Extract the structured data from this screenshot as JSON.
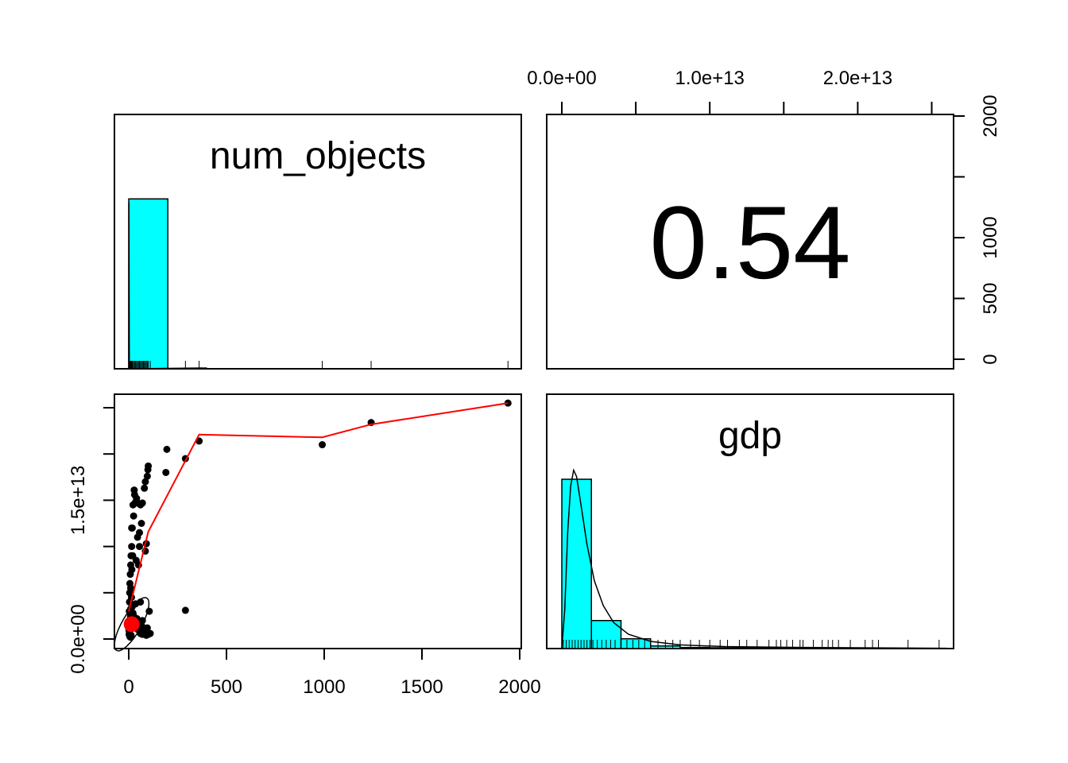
{
  "chart_data": {
    "type": "scatter",
    "layout": "pairs-panel 2x2",
    "variables": [
      "num_objects",
      "gdp"
    ],
    "colors": {
      "histogram_fill": "#00FFFF",
      "smoother": "#FF0000",
      "points": "#000000",
      "mean_point": "#FF0000"
    },
    "axes": {
      "num_objects": {
        "range": [
          0,
          2000
        ],
        "ticks": [
          0,
          500,
          1000,
          1500,
          2000
        ],
        "tick_labels": [
          "0",
          "500",
          "1000",
          "1500",
          "2000"
        ]
      },
      "gdp": {
        "range": [
          0,
          25000000000000.0
        ],
        "top_ticks": [
          0,
          5000000000000.0,
          10000000000000.0,
          15000000000000.0,
          20000000000000.0,
          25000000000000.0
        ],
        "top_tick_labels": [
          "0.0e+00",
          "1.0e+13",
          "2.0e+13"
        ],
        "top_labeled_ticks": [
          0,
          10000000000000.0,
          20000000000000.0
        ],
        "left_ticks": [
          0,
          5000000000000.0,
          10000000000000.0,
          15000000000000.0,
          20000000000000.0,
          25000000000000.0
        ],
        "left_tick_labels": [
          "0.0e+00",
          "1.5e+13"
        ],
        "left_labeled_ticks": [
          0,
          15000000000000.0
        ]
      },
      "right_count": {
        "range": [
          0,
          2000
        ],
        "ticks": [
          0,
          500,
          1000,
          1500,
          2000
        ],
        "tick_labels": [
          "0",
          "500",
          "1000",
          "2000"
        ],
        "labeled_ticks": [
          0,
          500,
          1000,
          2000
        ]
      }
    },
    "panels": [
      {
        "position": "top-left",
        "kind": "histogram",
        "title": "num_objects",
        "bins": [
          {
            "from": 0,
            "to": 200,
            "height": 0.95
          }
        ],
        "rug": [
          0,
          2,
          4,
          6,
          8,
          10,
          12,
          15,
          18,
          20,
          25,
          30,
          35,
          40,
          45,
          50,
          55,
          60,
          65,
          70,
          75,
          80,
          85,
          90,
          95,
          100,
          110,
          290,
          360,
          990,
          1240,
          1940
        ]
      },
      {
        "position": "top-right",
        "kind": "correlation",
        "value": "0.54"
      },
      {
        "position": "bottom-left",
        "kind": "scatter",
        "points": [
          [
            1940,
            25500000000000.0
          ],
          [
            1240,
            23400000000000.0
          ],
          [
            990,
            21000000000000.0
          ],
          [
            360,
            21400000000000.0
          ],
          [
            290,
            19500000000000.0
          ],
          [
            195,
            20500000000000.0
          ],
          [
            190,
            18000000000000.0
          ],
          [
            290,
            3100000000000.0
          ],
          [
            100,
            18700000000000.0
          ],
          [
            98,
            18300000000000.0
          ],
          [
            95,
            17600000000000.0
          ],
          [
            85,
            17000000000000.0
          ],
          [
            80,
            16300000000000.0
          ],
          [
            70,
            14700000000000.0
          ],
          [
            65,
            12500000000000.0
          ],
          [
            60,
            14500000000000.0
          ],
          [
            55,
            11500000000000.0
          ],
          [
            45,
            14700000000000.0
          ],
          [
            40,
            15200000000000.0
          ],
          [
            35,
            14800000000000.0
          ],
          [
            30,
            15600000000000.0
          ],
          [
            28,
            16100000000000.0
          ],
          [
            25,
            13300000000000.0
          ],
          [
            22,
            14500000000000.0
          ],
          [
            18,
            12000000000000.0
          ],
          [
            15,
            10000000000000.0
          ],
          [
            12,
            9000000000000.0
          ],
          [
            10,
            8000000000000.0
          ],
          [
            8,
            7000000000000.0
          ],
          [
            6,
            6000000000000.0
          ],
          [
            5,
            5000000000000.0
          ],
          [
            4,
            4000000000000.0
          ],
          [
            3,
            3000000000000.0
          ],
          [
            2,
            2000000000000.0
          ],
          [
            1,
            1000000000000.0
          ],
          [
            2,
            500000000000.0
          ],
          [
            5,
            300000000000.0
          ],
          [
            8,
            200000000000.0
          ],
          [
            12,
            400000000000.0
          ],
          [
            20,
            1500000000000.0
          ],
          [
            25,
            2500000000000.0
          ],
          [
            30,
            1800000000000.0
          ],
          [
            40,
            2000000000000.0
          ],
          [
            50,
            1200000000000.0
          ],
          [
            60,
            600000000000.0
          ],
          [
            70,
            500000000000.0
          ],
          [
            80,
            700000000000.0
          ],
          [
            90,
            400000000000.0
          ],
          [
            100,
            500000000000.0
          ],
          [
            105,
            3000000000000.0
          ],
          [
            70,
            2000000000000.0
          ],
          [
            60,
            4000000000000.0
          ],
          [
            85,
            9500000000000.0
          ],
          [
            90,
            10300000000000.0
          ],
          [
            45,
            11000000000000.0
          ],
          [
            38,
            8500000000000.0
          ],
          [
            50,
            8000000000000.0
          ],
          [
            55,
            10000000000000.0
          ],
          [
            15,
            12000000000000.0
          ],
          [
            20,
            9000000000000.0
          ],
          [
            10,
            5500000000000.0
          ],
          [
            14,
            4500000000000.0
          ],
          [
            18,
            3500000000000.0
          ],
          [
            22,
            2800000000000.0
          ],
          [
            35,
            3800000000000.0
          ],
          [
            42,
            2200000000000.0
          ],
          [
            48,
            1000000000000.0
          ],
          [
            65,
            1500000000000.0
          ],
          [
            75,
            1000000000000.0
          ],
          [
            95,
            1200000000000.0
          ],
          [
            110,
            600000000000.0
          ],
          [
            3,
            800000000000.0
          ],
          [
            6,
            1300000000000.0
          ],
          [
            9,
            2500000000000.0
          ],
          [
            11,
            3300000000000.0
          ],
          [
            16,
            7500000000000.0
          ]
        ],
        "smoother": [
          [
            0,
            3000000000000.0
          ],
          [
            100,
            11600000000000.0
          ],
          [
            360,
            22100000000000.0
          ],
          [
            990,
            21800000000000.0
          ],
          [
            1240,
            23200000000000.0
          ],
          [
            1940,
            25500000000000.0
          ]
        ],
        "mean_point": [
          15,
          1600000000000.0
        ]
      },
      {
        "position": "bottom-right",
        "kind": "histogram",
        "title": "gdp",
        "bins": [
          {
            "from": 0,
            "to": 2000000000000.0,
            "height": 1300
          },
          {
            "from": 2000000000000.0,
            "to": 4000000000000.0,
            "height": 215
          },
          {
            "from": 4000000000000.0,
            "to": 6000000000000.0,
            "height": 75
          },
          {
            "from": 6000000000000.0,
            "to": 8000000000000.0,
            "height": 20
          },
          {
            "from": 8000000000000.0,
            "to": 10000000000000.0,
            "height": 8
          },
          {
            "from": 10000000000000.0,
            "to": 12000000000000.0,
            "height": 6
          },
          {
            "from": 12000000000000.0,
            "to": 14000000000000.0,
            "height": 5
          },
          {
            "from": 14000000000000.0,
            "to": 16000000000000.0,
            "height": 4
          },
          {
            "from": 16000000000000.0,
            "to": 18000000000000.0,
            "height": 4
          },
          {
            "from": 18000000000000.0,
            "to": 20000000000000.0,
            "height": 3
          },
          {
            "from": 20000000000000.0,
            "to": 22000000000000.0,
            "height": 2
          },
          {
            "from": 22000000000000.0,
            "to": 24000000000000.0,
            "height": 2
          },
          {
            "from": 24000000000000.0,
            "to": 26000000000000.0,
            "height": 1
          }
        ],
        "rug": [
          100000000000.0,
          300000000000.0,
          500000000000.0,
          700000000000.0,
          900000000000.0,
          1100000000000.0,
          1300000000000.0,
          1500000000000.0,
          1700000000000.0,
          1900000000000.0,
          2100000000000.0,
          2400000000000.0,
          2700000000000.0,
          3000000000000.0,
          3300000000000.0,
          3600000000000.0,
          4000000000000.0,
          4400000000000.0,
          4800000000000.0,
          5200000000000.0,
          5600000000000.0,
          6000000000000.0,
          6500000000000.0,
          7000000000000.0,
          7500000000000.0,
          8000000000000.0,
          8700000000000.0,
          9300000000000.0,
          10000000000000.0,
          10700000000000.0,
          11200000000000.0,
          12000000000000.0,
          12500000000000.0,
          13200000000000.0,
          14000000000000.0,
          14500000000000.0,
          14800000000000.0,
          15200000000000.0,
          15600000000000.0,
          16100000000000.0,
          16300000000000.0,
          17000000000000.0,
          17600000000000.0,
          18000000000000.0,
          18300000000000.0,
          18700000000000.0,
          19500000000000.0,
          20500000000000.0,
          21000000000000.0,
          21400000000000.0,
          23400000000000.0,
          25500000000000.0
        ],
        "density": [
          [
            0,
            5
          ],
          [
            200000000000.0,
            300
          ],
          [
            400000000000.0,
            900
          ],
          [
            600000000000.0,
            1250
          ],
          [
            800000000000.0,
            1370
          ],
          [
            1000000000000.0,
            1320
          ],
          [
            1300000000000.0,
            1100
          ],
          [
            1700000000000.0,
            800
          ],
          [
            2200000000000.0,
            520
          ],
          [
            2800000000000.0,
            330
          ],
          [
            3500000000000.0,
            200
          ],
          [
            4500000000000.0,
            110
          ],
          [
            6000000000000.0,
            55
          ],
          [
            8000000000000.0,
            28
          ],
          [
            11000000000000.0,
            15
          ],
          [
            15000000000000.0,
            10
          ],
          [
            20000000000000.0,
            6
          ],
          [
            26000000000000.0,
            2
          ]
        ],
        "ylim": [
          0,
          1400
        ]
      }
    ]
  }
}
